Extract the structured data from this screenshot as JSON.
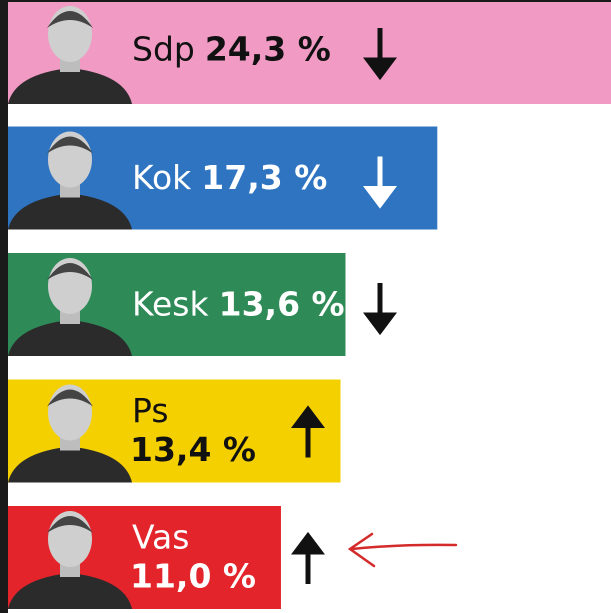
{
  "chart_data": {
    "type": "bar",
    "orientation": "horizontal",
    "categories": [
      "Sdp",
      "Kok",
      "Kesk",
      "Ps",
      "Vas"
    ],
    "values": [
      24.3,
      17.3,
      13.6,
      13.4,
      11.0
    ],
    "value_labels": [
      "24,3 %",
      "17,3 %",
      "13,6 %",
      "13,4 %",
      "11,0 %"
    ],
    "colors": [
      "#f09ac4",
      "#2f74c0",
      "#2e8b57",
      "#f5d000",
      "#e3242b"
    ],
    "trend": [
      "down",
      "down",
      "down",
      "up",
      "up"
    ],
    "xlim": [
      0,
      24.3
    ]
  }
}
